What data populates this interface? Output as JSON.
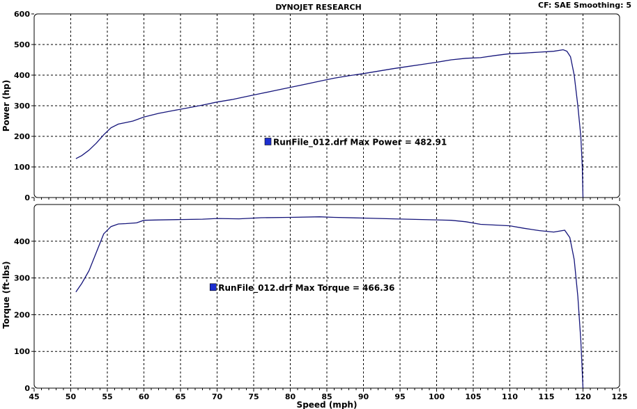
{
  "header": {
    "title": "DYNOJET RESEARCH",
    "settings": "CF: SAE  Smoothing: 5"
  },
  "colors": {
    "curve": "#14147a",
    "marker": "#1d2fd0"
  },
  "chart_data": [
    {
      "type": "line",
      "ylabel": "Power (hp)",
      "xlim": [
        45,
        125
      ],
      "ylim": [
        0,
        600
      ],
      "x_ticks": [
        45,
        50,
        55,
        60,
        65,
        70,
        75,
        80,
        85,
        90,
        95,
        100,
        105,
        110,
        115,
        120,
        125
      ],
      "y_ticks": [
        0,
        100,
        200,
        300,
        400,
        500,
        600
      ],
      "grid": true,
      "annotation": {
        "text": "RunFile_012.drf Max Power = 482.91",
        "x": 77,
        "y": 183
      },
      "series": [
        {
          "x": [
            50.7,
            51.5,
            52.5,
            53.5,
            54.5,
            55.5,
            56.5,
            57.5,
            58.5,
            60,
            62,
            64,
            66,
            68,
            70,
            72,
            74,
            76,
            78,
            80,
            82,
            84,
            86,
            88,
            90,
            92,
            94,
            96,
            98,
            100,
            102,
            104,
            106,
            108,
            110,
            112,
            114,
            116,
            117.3,
            117.8,
            118.3,
            118.8,
            119.3,
            119.7,
            119.9,
            120.0
          ],
          "y": [
            127,
            137,
            155,
            178,
            205,
            228,
            240,
            245,
            250,
            263,
            275,
            284,
            293,
            302,
            312,
            320,
            330,
            340,
            350,
            360,
            370,
            380,
            390,
            398,
            405,
            413,
            421,
            428,
            435,
            442,
            450,
            455,
            457,
            464,
            470,
            472,
            475,
            478,
            482.9,
            478,
            460,
            400,
            300,
            200,
            100,
            0
          ]
        }
      ]
    },
    {
      "type": "line",
      "xlabel": "Speed (mph)",
      "ylabel": "Torque (ft-lbs)",
      "xlim": [
        45,
        125
      ],
      "ylim": [
        0,
        500
      ],
      "x_ticks": [
        45,
        50,
        55,
        60,
        65,
        70,
        75,
        80,
        85,
        90,
        95,
        100,
        105,
        110,
        115,
        120,
        125
      ],
      "y_ticks": [
        0,
        100,
        200,
        300,
        400
      ],
      "grid": true,
      "annotation": {
        "text": "RunFile_012.drf Max Torque = 466.36",
        "x": 69.5,
        "y": 275
      },
      "series": [
        {
          "x": [
            50.7,
            51.5,
            52.5,
            53.5,
            54.5,
            55.5,
            56.5,
            57.5,
            59,
            60,
            62,
            65,
            68,
            70,
            73,
            76,
            80,
            84,
            86,
            90,
            94,
            98,
            102,
            104,
            106,
            110,
            112,
            114,
            116,
            117.5,
            118.2,
            118.8,
            119.3,
            119.7,
            120.0
          ],
          "y": [
            262,
            285,
            320,
            370,
            420,
            440,
            447,
            448,
            450,
            457,
            458,
            459,
            460,
            462,
            461,
            464,
            465,
            466.4,
            465,
            463,
            461,
            459,
            457,
            453,
            446,
            442,
            435,
            429,
            425,
            430,
            410,
            350,
            250,
            130,
            0
          ]
        }
      ]
    }
  ]
}
